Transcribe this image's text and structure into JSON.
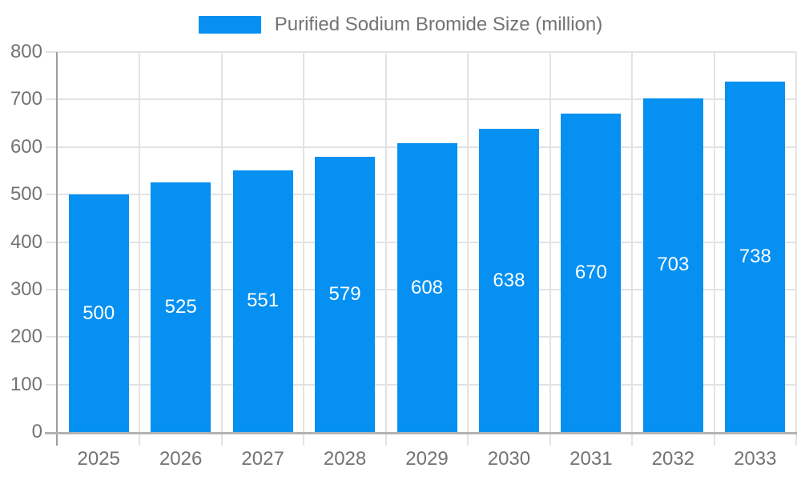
{
  "chart_data": {
    "type": "bar",
    "title": "Purified Sodium Bromide Size (million)",
    "categories": [
      "2025",
      "2026",
      "2027",
      "2028",
      "2029",
      "2030",
      "2031",
      "2032",
      "2033"
    ],
    "values": [
      500,
      525,
      551,
      579,
      608,
      638,
      670,
      703,
      738
    ],
    "yticks": [
      0,
      100,
      200,
      300,
      400,
      500,
      600,
      700,
      800
    ],
    "ylim": [
      0,
      800
    ],
    "xlabel": "",
    "ylabel": "",
    "grid": true,
    "legend_position": "top-center",
    "colors": {
      "bar": "#0590F2",
      "bar_label": "#FFFFFF",
      "axis_text": "#737373",
      "grid_line": "#E3E3E3",
      "y_axis_line": "#9E9E9E",
      "x_axis_line": "#B3B3B3",
      "background": "#FFFFFF"
    }
  }
}
